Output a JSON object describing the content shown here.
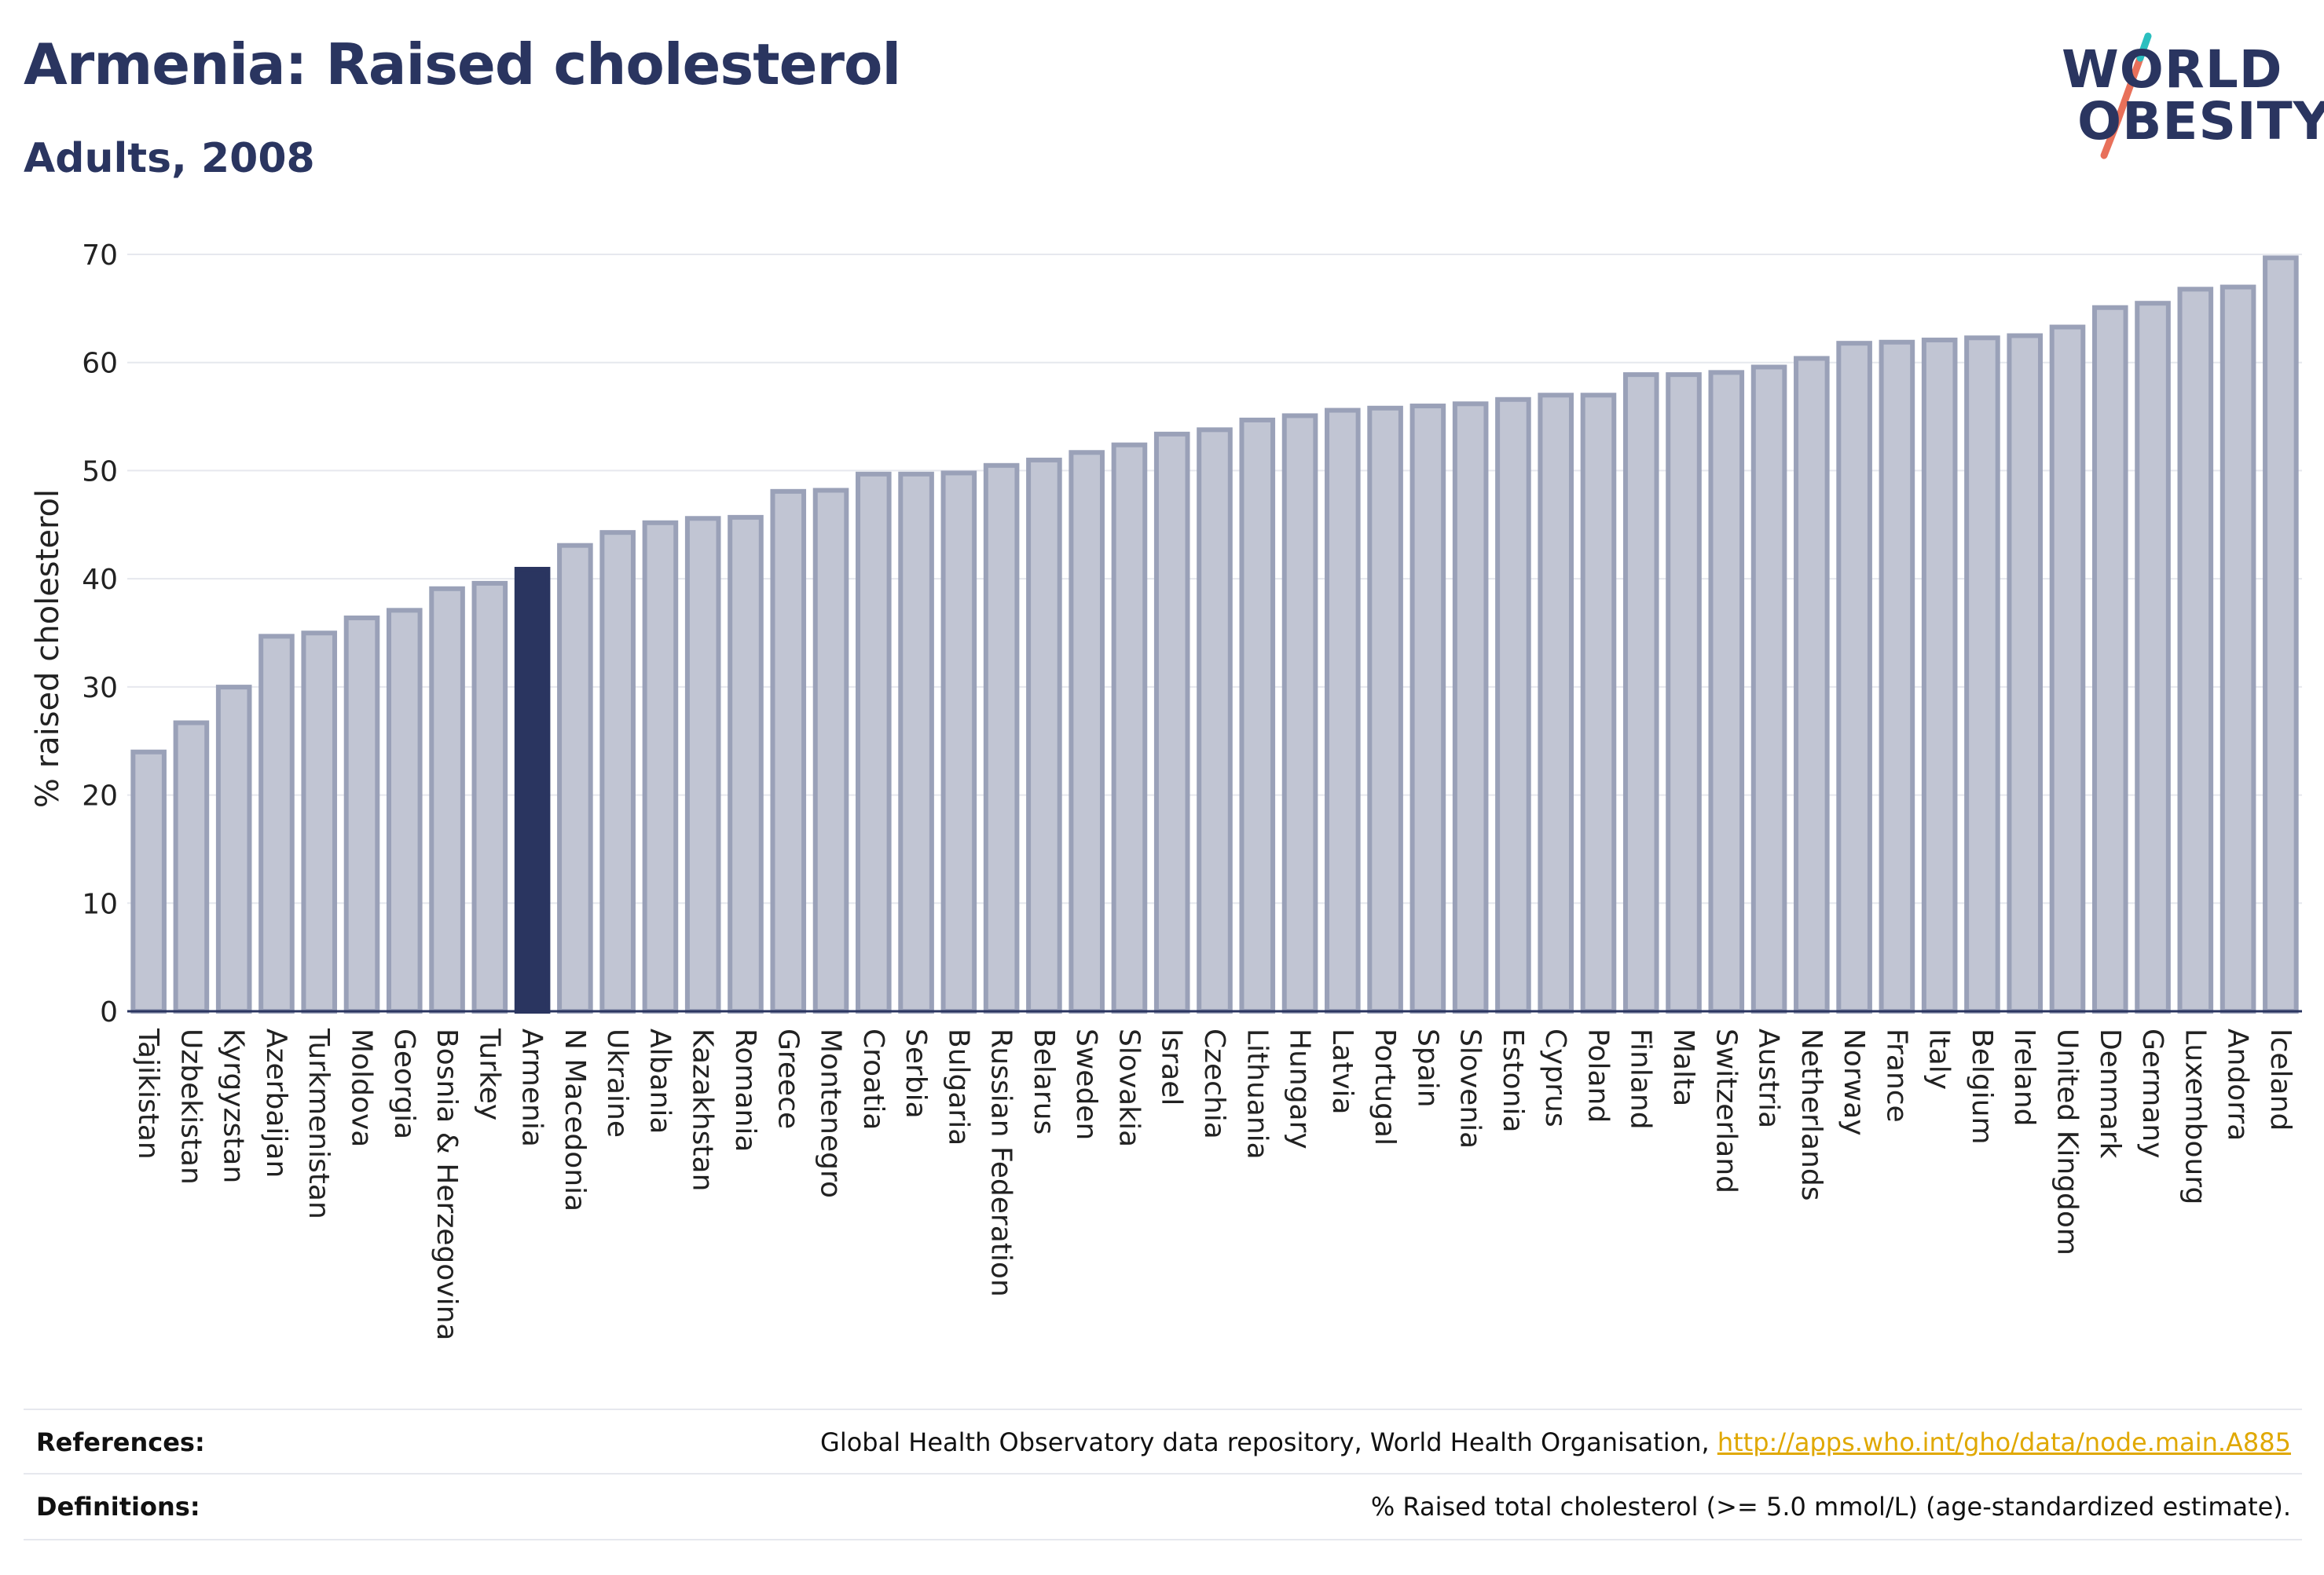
{
  "header": {
    "title": "Armenia: Raised cholesterol",
    "subtitle": "Adults, 2008"
  },
  "logo": {
    "line1": "WORLD",
    "line2": "OBESITY",
    "accent_colors": [
      "#2bbfbf",
      "#e8705a"
    ]
  },
  "chart_data": {
    "type": "bar",
    "ylabel": "% raised cholesterol",
    "ylim": [
      0,
      70
    ],
    "yticks": [
      0,
      10,
      20,
      30,
      40,
      50,
      60,
      70
    ],
    "grid": true,
    "highlight": "Armenia",
    "colors": {
      "bar": "#c1c5d3",
      "bar_edge": "#9aa1b8",
      "highlight": "#2a3560",
      "text": "#222222",
      "grid": "#e6e8ee"
    },
    "categories": [
      "Tajikistan",
      "Uzbekistan",
      "Kyrgyzstan",
      "Azerbaijan",
      "Turkmenistan",
      "Moldova",
      "Georgia",
      "Bosnia & Herzegovina",
      "Turkey",
      "Armenia",
      "N Macedonia",
      "Ukraine",
      "Albania",
      "Kazakhstan",
      "Romania",
      "Greece",
      "Montenegro",
      "Croatia",
      "Serbia",
      "Bulgaria",
      "Russian Federation",
      "Belarus",
      "Sweden",
      "Slovakia",
      "Israel",
      "Czechia",
      "Lithuania",
      "Hungary",
      "Latvia",
      "Portugal",
      "Spain",
      "Slovenia",
      "Estonia",
      "Cyprus",
      "Poland",
      "Finland",
      "Malta",
      "Switzerland",
      "Austria",
      "Netherlands",
      "Norway",
      "France",
      "Italy",
      "Belgium",
      "Ireland",
      "United Kingdom",
      "Denmark",
      "Germany",
      "Luxembourg",
      "Andorra",
      "Iceland"
    ],
    "values": [
      24.2,
      26.9,
      30.2,
      34.9,
      35.2,
      36.6,
      37.3,
      39.3,
      39.8,
      41.1,
      43.3,
      44.5,
      45.4,
      45.8,
      45.9,
      48.3,
      48.4,
      49.9,
      49.9,
      50.0,
      50.7,
      51.2,
      51.9,
      52.6,
      53.6,
      54.0,
      54.9,
      55.3,
      55.8,
      56.0,
      56.2,
      56.4,
      56.8,
      57.2,
      57.2,
      59.1,
      59.1,
      59.3,
      59.8,
      60.6,
      62.0,
      62.1,
      62.3,
      62.5,
      62.7,
      63.5,
      65.3,
      65.7,
      67.0,
      67.2,
      69.9
    ]
  },
  "footer": {
    "references_label": "References:",
    "references_text": "Global Health Observatory data repository, World Health Organisation, ",
    "references_link": "http://apps.who.int/gho/data/node.main.A885",
    "definitions_label": "Definitions:",
    "definitions_text": "% Raised total cholesterol (>= 5.0 mmol/L) (age-standardized estimate)."
  }
}
